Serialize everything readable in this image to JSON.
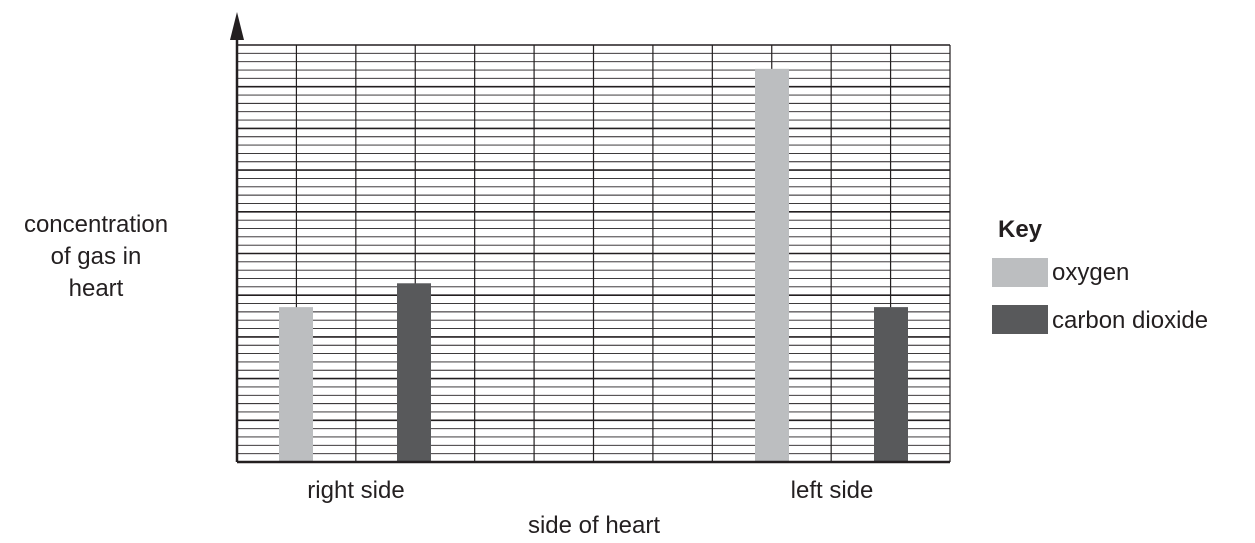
{
  "chart_data": {
    "type": "bar",
    "title": "",
    "xlabel": "side of heart",
    "ylabel_lines": [
      "concentration",
      "of gas in",
      "heart"
    ],
    "categories": [
      "right side",
      "left side"
    ],
    "series": [
      {
        "name": "oxygen",
        "values": [
          26,
          66
        ],
        "color": "#bcbec0"
      },
      {
        "name": "carbon dioxide",
        "values": [
          30,
          26
        ],
        "color": "#58595b"
      }
    ],
    "ylim": [
      0,
      70
    ],
    "grid": true,
    "y_tick_labels_shown": false,
    "legend": {
      "title": "Key",
      "placement": "right"
    }
  }
}
